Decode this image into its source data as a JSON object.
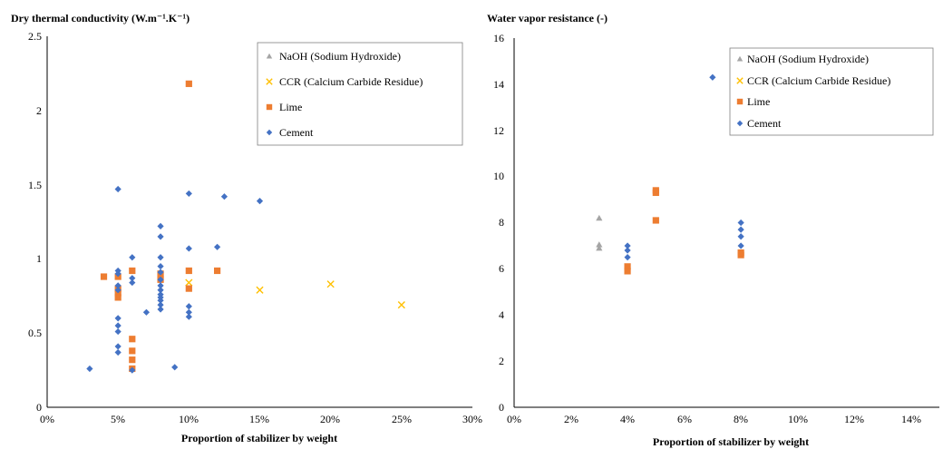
{
  "chart_data": [
    {
      "type": "scatter",
      "title": "Dry thermal conductivity (W.m⁻¹.K⁻¹)",
      "xlabel": "Proportion of stabilizer by weight",
      "ylabel": "",
      "xlim": [
        0,
        30
      ],
      "ylim": [
        0,
        2.5
      ],
      "x_ticks": [
        "0%",
        "5%",
        "10%",
        "15%",
        "20%",
        "25%",
        "30%"
      ],
      "y_ticks": [
        "0",
        "0.5",
        "1",
        "1.5",
        "2",
        "2.5"
      ],
      "grid": false,
      "legend_position": "top-right",
      "series": [
        {
          "name": "NaOH (Sodium Hydroxide)",
          "marker": "triangle",
          "color": "#A5A5A5",
          "points": []
        },
        {
          "name": "CCR (Calcium Carbide Residue)",
          "marker": "x",
          "color": "#FFC000",
          "points": [
            [
              10,
              0.84
            ],
            [
              15,
              0.79
            ],
            [
              20,
              0.83
            ],
            [
              25,
              0.69
            ]
          ]
        },
        {
          "name": "Lime",
          "marker": "square",
          "color": "#ED7D31",
          "points": [
            [
              4,
              0.88
            ],
            [
              5,
              0.88
            ],
            [
              5,
              0.8
            ],
            [
              5,
              0.77
            ],
            [
              5,
              0.74
            ],
            [
              6,
              0.92
            ],
            [
              6,
              0.46
            ],
            [
              6,
              0.38
            ],
            [
              6,
              0.32
            ],
            [
              6,
              0.26
            ],
            [
              8,
              0.9
            ],
            [
              8,
              0.86
            ],
            [
              10,
              2.18
            ],
            [
              10,
              0.92
            ],
            [
              10,
              0.8
            ],
            [
              12,
              0.92
            ]
          ]
        },
        {
          "name": "Cement",
          "marker": "diamond",
          "color": "#4472C4",
          "points": [
            [
              3,
              0.26
            ],
            [
              5,
              1.47
            ],
            [
              5,
              0.92
            ],
            [
              5,
              0.9
            ],
            [
              5,
              0.82
            ],
            [
              5,
              0.79
            ],
            [
              5,
              0.6
            ],
            [
              5,
              0.55
            ],
            [
              5,
              0.51
            ],
            [
              5,
              0.41
            ],
            [
              5,
              0.37
            ],
            [
              6,
              1.01
            ],
            [
              6,
              0.87
            ],
            [
              6,
              0.84
            ],
            [
              6,
              0.25
            ],
            [
              7,
              0.64
            ],
            [
              8,
              1.22
            ],
            [
              8,
              1.15
            ],
            [
              8,
              1.01
            ],
            [
              8,
              0.95
            ],
            [
              8,
              0.91
            ],
            [
              8,
              0.86
            ],
            [
              8,
              0.82
            ],
            [
              8,
              0.79
            ],
            [
              8,
              0.76
            ],
            [
              8,
              0.74
            ],
            [
              8,
              0.72
            ],
            [
              8,
              0.69
            ],
            [
              8,
              0.66
            ],
            [
              9,
              0.27
            ],
            [
              10,
              1.44
            ],
            [
              10,
              1.07
            ],
            [
              10,
              0.68
            ],
            [
              10,
              0.64
            ],
            [
              10,
              0.61
            ],
            [
              12,
              1.08
            ],
            [
              12.5,
              1.42
            ],
            [
              15,
              1.39
            ]
          ]
        }
      ]
    },
    {
      "type": "scatter",
      "title": "Water vapor resistance (-)",
      "xlabel": "Proportion of stabilizer by weight",
      "ylabel": "",
      "xlim": [
        0,
        15
      ],
      "ylim": [
        0,
        16
      ],
      "x_ticks": [
        "0%",
        "2%",
        "4%",
        "6%",
        "8%",
        "10%",
        "12%",
        "14%"
      ],
      "y_ticks": [
        "0",
        "2",
        "4",
        "6",
        "8",
        "10",
        "12",
        "14",
        "16"
      ],
      "grid": false,
      "legend_position": "top-right",
      "series": [
        {
          "name": "NaOH (Sodium Hydroxide)",
          "marker": "triangle",
          "color": "#A5A5A5",
          "points": [
            [
              3,
              8.2
            ],
            [
              3,
              7.05
            ],
            [
              3,
              6.9
            ]
          ]
        },
        {
          "name": "CCR (Calcium Carbide Residue)",
          "marker": "x",
          "color": "#FFC000",
          "points": []
        },
        {
          "name": "Lime",
          "marker": "square",
          "color": "#ED7D31",
          "points": [
            [
              4,
              6.1
            ],
            [
              4,
              5.9
            ],
            [
              5,
              9.4
            ],
            [
              5,
              9.3
            ],
            [
              5,
              8.1
            ],
            [
              8,
              6.7
            ],
            [
              8,
              6.6
            ]
          ]
        },
        {
          "name": "Cement",
          "marker": "diamond",
          "color": "#4472C4",
          "points": [
            [
              4,
              7.0
            ],
            [
              4,
              6.8
            ],
            [
              4,
              6.5
            ],
            [
              7,
              14.3
            ],
            [
              8,
              8.0
            ],
            [
              8,
              7.7
            ],
            [
              8,
              7.4
            ],
            [
              8,
              7.0
            ]
          ]
        }
      ]
    }
  ]
}
